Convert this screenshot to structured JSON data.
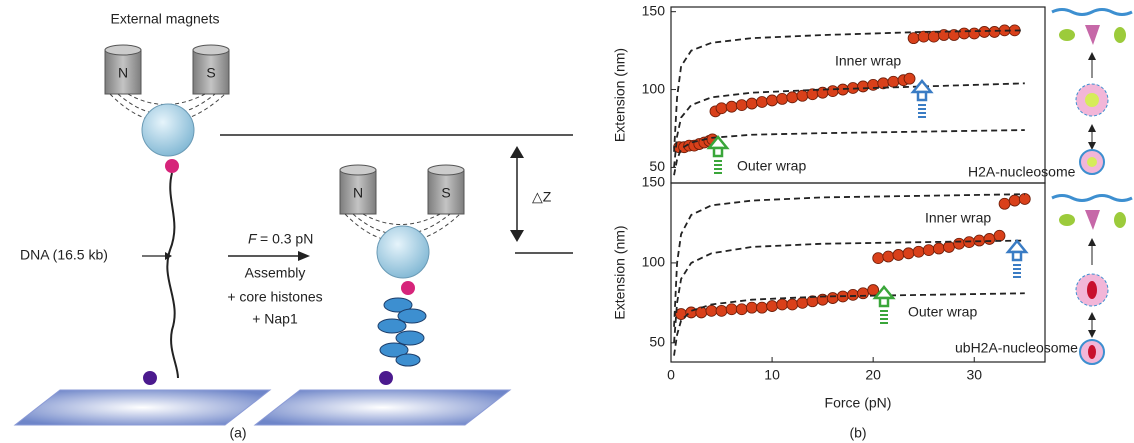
{
  "schematic": {
    "magnets_label": "External magnets",
    "north": "N",
    "south": "S",
    "north_2": "N",
    "south_2": "S",
    "dna_label": "DNA (16.5 kb)",
    "force_symbol": "F",
    "force_value": "= 0.3 pN",
    "step_1": "Assembly",
    "step_2": "+ core histones",
    "step_3": "+ Nap1",
    "delta_z": "△Z",
    "panel_label": "(a)"
  },
  "panel_b_label": "(b)",
  "chart_data": [
    {
      "type": "scatter",
      "ylabel": "Extension (nm)",
      "xlim": [
        0,
        37
      ],
      "ylim": [
        40,
        153
      ],
      "yticks": [
        50,
        100,
        150
      ],
      "annotations": [
        "Inner wrap",
        "Outer wrap",
        "H2A-nucleosome"
      ],
      "series": [
        {
          "color": "#d9401a",
          "x": [
            0.8,
            1.3,
            1.8,
            2.3,
            2.8,
            3.3,
            3.8,
            4.1,
            4.4,
            5,
            6,
            7,
            8,
            9,
            10,
            11,
            12,
            13,
            14,
            15,
            16,
            17,
            18,
            19,
            20,
            21,
            22,
            23,
            23.6,
            24,
            25,
            26,
            27,
            28,
            29,
            30,
            31,
            32,
            33,
            34
          ],
          "values": [
            63,
            63,
            64,
            64,
            65,
            66,
            67,
            68,
            86,
            88,
            89,
            90,
            91,
            92,
            93,
            94,
            95,
            96,
            97,
            98,
            99,
            100,
            101,
            102,
            103,
            104,
            105,
            106,
            107,
            133,
            134,
            134,
            135,
            135,
            136,
            136,
            137,
            137,
            138,
            138
          ]
        },
        {
          "color": "#222222",
          "dashed": true,
          "x": [
            0.3,
            0.6,
            1,
            2,
            4,
            8,
            15,
            25,
            35
          ],
          "values": [
            60,
            95,
            115,
            125,
            130,
            133,
            135,
            137,
            138
          ]
        },
        {
          "color": "#222222",
          "dashed": true,
          "x": [
            0.3,
            0.6,
            1,
            2,
            4,
            8,
            15,
            25,
            35
          ],
          "values": [
            50,
            70,
            82,
            90,
            95,
            98,
            100,
            102,
            104
          ]
        },
        {
          "color": "#222222",
          "dashed": true,
          "x": [
            0.3,
            0.6,
            1,
            2,
            4,
            8,
            15,
            25,
            35
          ],
          "values": [
            45,
            55,
            62,
            66,
            69,
            71,
            72,
            73,
            74
          ]
        }
      ]
    },
    {
      "type": "scatter",
      "ylabel": "Extension (nm)",
      "xlabel": "Force (pN)",
      "xlim": [
        0,
        37
      ],
      "ylim": [
        38,
        150
      ],
      "yticks": [
        50,
        100,
        150
      ],
      "xticks": [
        0,
        10,
        20,
        30
      ],
      "annotations": [
        "Inner wrap",
        "Outer wrap",
        "ubH2A-nucleosome"
      ],
      "series": [
        {
          "color": "#d9401a",
          "x": [
            1,
            2,
            3,
            4,
            5,
            6,
            7,
            8,
            9,
            10,
            11,
            12,
            13,
            14,
            15,
            16,
            17,
            18,
            19,
            20,
            20.5,
            21.5,
            22.5,
            23.5,
            24.5,
            25.5,
            26.5,
            27.5,
            28.5,
            29.5,
            30.5,
            31.5,
            32.5,
            33,
            34,
            35
          ],
          "values": [
            68,
            69,
            69,
            70,
            70,
            71,
            71,
            72,
            72,
            73,
            74,
            74,
            75,
            76,
            77,
            78,
            79,
            80,
            81,
            83,
            103,
            104,
            105,
            106,
            107,
            108,
            109,
            110,
            112,
            113,
            114,
            115,
            117,
            137,
            139,
            140
          ]
        },
        {
          "color": "#222222",
          "dashed": true,
          "x": [
            0.3,
            0.6,
            1,
            2,
            4,
            8,
            15,
            25,
            35
          ],
          "values": [
            60,
            100,
            118,
            130,
            136,
            139,
            141,
            142,
            143
          ]
        },
        {
          "color": "#222222",
          "dashed": true,
          "x": [
            0.3,
            0.6,
            1,
            2,
            4,
            8,
            15,
            25,
            35
          ],
          "values": [
            50,
            75,
            90,
            100,
            106,
            110,
            112,
            113,
            114
          ]
        },
        {
          "color": "#222222",
          "dashed": true,
          "x": [
            0.3,
            0.6,
            1,
            2,
            4,
            8,
            15,
            25,
            35
          ],
          "values": [
            42,
            55,
            64,
            70,
            74,
            77,
            79,
            80,
            81
          ]
        }
      ]
    }
  ]
}
